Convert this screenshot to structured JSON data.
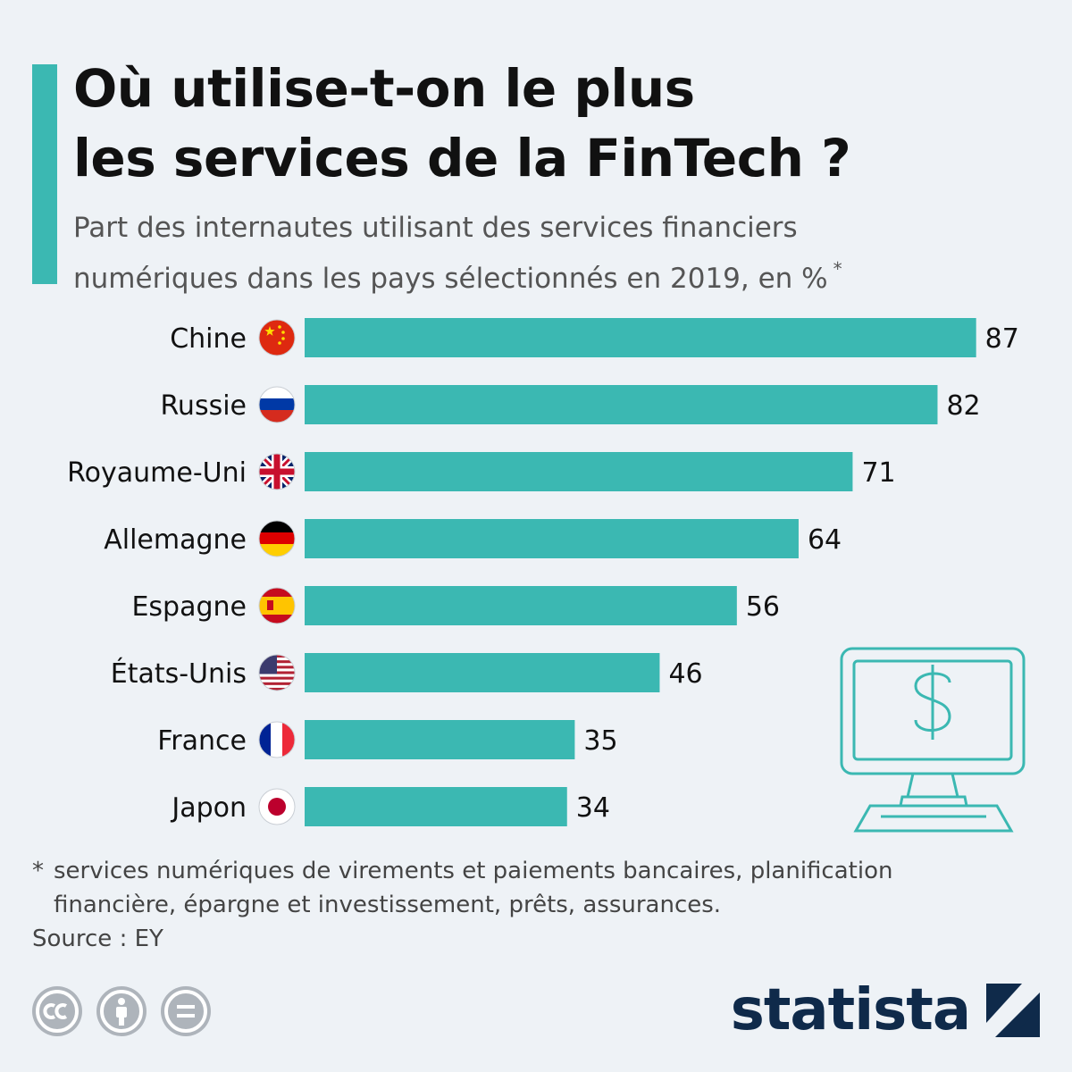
{
  "colors": {
    "accent": "#3bb8b2",
    "bar": "#3bb8b2",
    "brand": "#0f2a4a"
  },
  "header": {
    "title_line1": "Où utilise-t-on le plus",
    "title_line2": "les services de la FinTech ?",
    "subtitle_line1": "Part des internautes utilisant des services financiers",
    "subtitle_line2": "numériques dans les pays sélectionnés en 2019, en %",
    "subtitle_marker": "*"
  },
  "chart_data": {
    "type": "bar",
    "orientation": "horizontal",
    "categories": [
      "Chine",
      "Russie",
      "Royaume-Uni",
      "Allemagne",
      "Espagne",
      "États-Unis",
      "France",
      "Japon"
    ],
    "values": [
      87,
      82,
      71,
      64,
      56,
      46,
      35,
      34
    ],
    "xlim": [
      0,
      100
    ],
    "data_labels": true,
    "grid": false,
    "legend": "none",
    "icons": [
      "china-flag-icon",
      "russia-flag-icon",
      "uk-flag-icon",
      "germany-flag-icon",
      "spain-flag-icon",
      "usa-flag-icon",
      "france-flag-icon",
      "japan-flag-icon"
    ]
  },
  "footer": {
    "footnote_marker": "*",
    "footnote_line1": "services numériques de virements et paiements bancaires, planification",
    "footnote_line2": "financière, épargne et investissement, prêts, assurances.",
    "source": "Source : EY",
    "brand": "statista",
    "license_icons": [
      "cc-icon",
      "attribution-icon",
      "no-derivatives-icon"
    ]
  },
  "decoration": {
    "icon": "computer-dollar-icon"
  }
}
